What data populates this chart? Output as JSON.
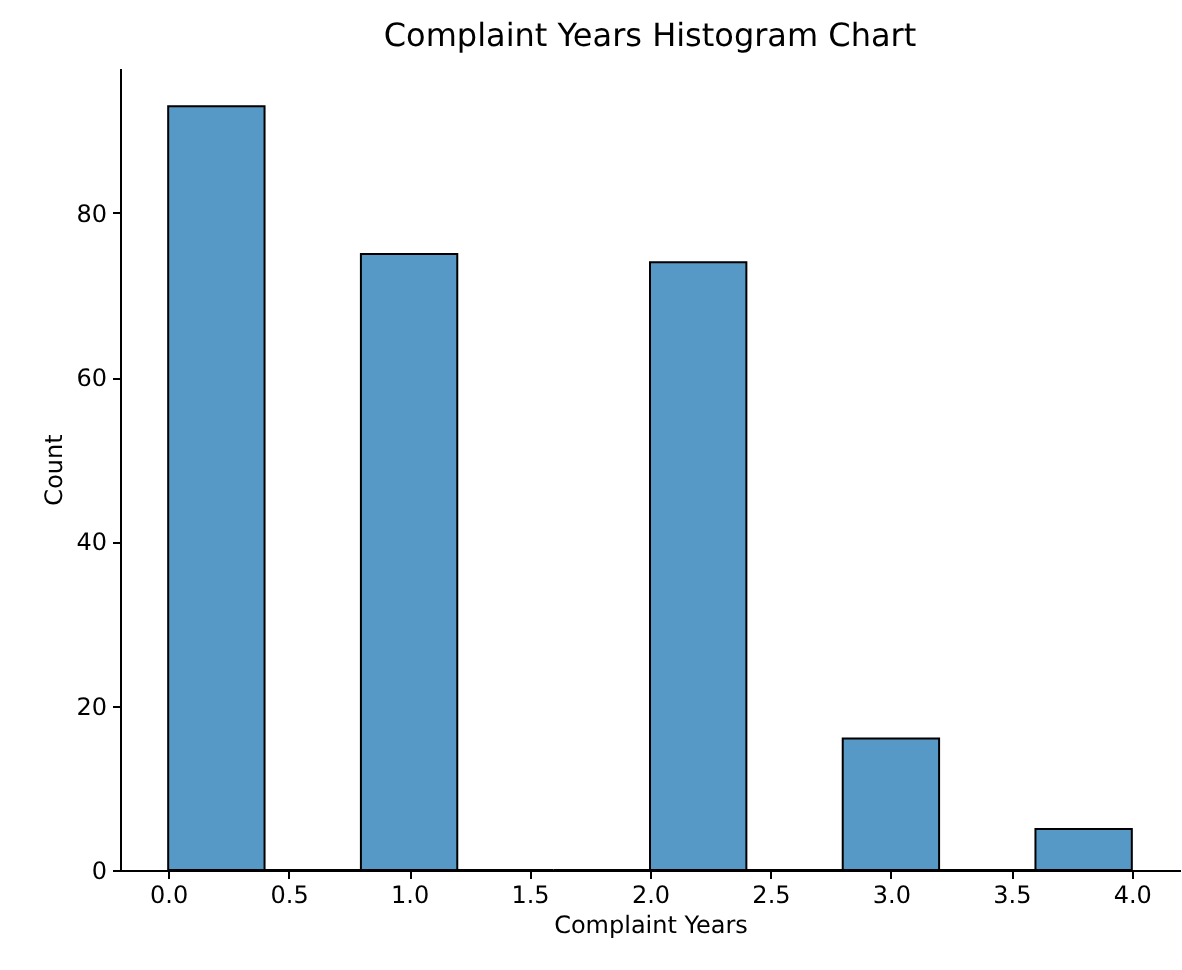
{
  "chart_data": {
    "type": "histogram",
    "title": "Complaint Years Histogram Chart",
    "xlabel": "Complaint Years",
    "ylabel": "Count",
    "bins": [
      0,
      0.4,
      0.8,
      1.2,
      1.6,
      2.0,
      2.4,
      2.8,
      3.2,
      3.6,
      4.0
    ],
    "values": [
      93,
      0,
      75,
      0,
      0,
      74,
      0,
      16,
      0,
      5
    ],
    "color": "#5799c6",
    "xlim": [
      -0.2,
      4.2
    ],
    "xticks": [
      {
        "value": 0,
        "label": "0.0"
      },
      0.5,
      {
        "value": 1,
        "label": "1.0"
      },
      1.5,
      {
        "value": 2,
        "label": "2.0"
      },
      2.5,
      {
        "value": 3,
        "label": "3.0"
      },
      3.5,
      {
        "value": 4,
        "label": "4.0"
      }
    ],
    "ylim": [
      0,
      97.65
    ],
    "yticks": [
      0,
      20,
      40,
      60,
      80
    ],
    "grid": false
  }
}
